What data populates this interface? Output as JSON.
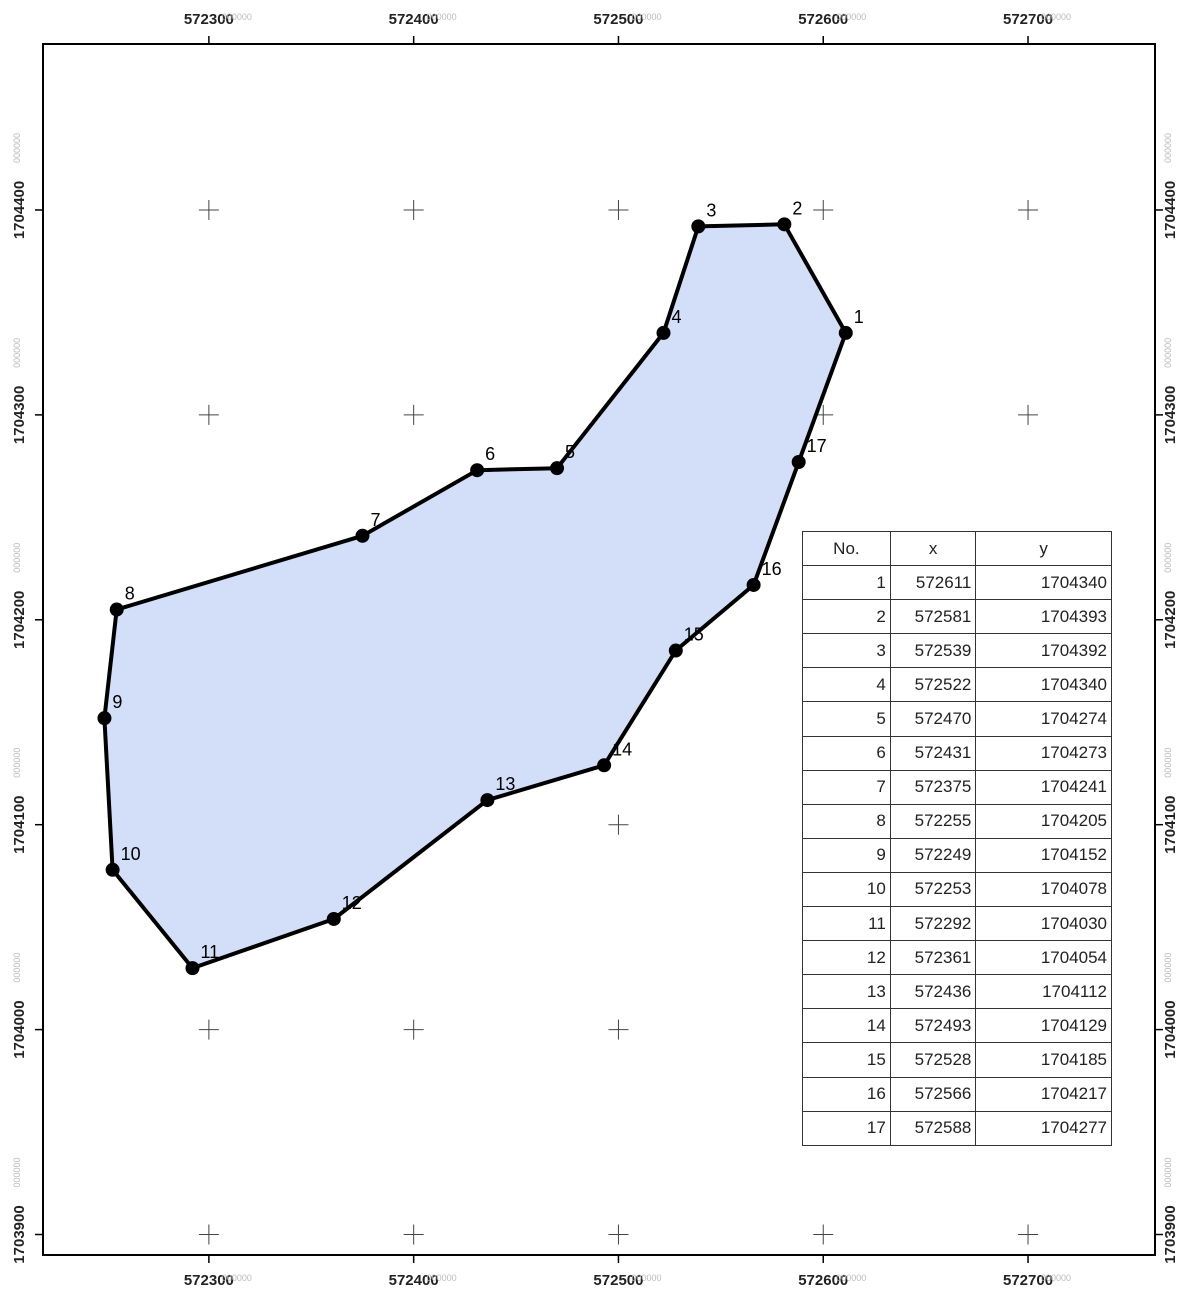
{
  "map": {
    "x_ticks": [
      {
        "value": 572300,
        "label": "572300",
        "suffix": "000000"
      },
      {
        "value": 572400,
        "label": "572400",
        "suffix": "000000"
      },
      {
        "value": 572500,
        "label": "572500",
        "suffix": "000000"
      },
      {
        "value": 572600,
        "label": "572600",
        "suffix": "000000"
      },
      {
        "value": 572700,
        "label": "572700",
        "suffix": "000000"
      }
    ],
    "y_ticks": [
      {
        "value": 1704400,
        "label": "1704400",
        "suffix": "000000"
      },
      {
        "value": 1704300,
        "label": "1704300",
        "suffix": "000000"
      },
      {
        "value": 1704200,
        "label": "1704200",
        "suffix": "000000"
      },
      {
        "value": 1704100,
        "label": "1704100",
        "suffix": "000000"
      },
      {
        "value": 1704000,
        "label": "1704000",
        "suffix": "000000"
      },
      {
        "value": 1703900,
        "label": "1703900",
        "suffix": "000000"
      }
    ],
    "x_range": [
      572219,
      572762
    ],
    "y_range": [
      1703890,
      1704481
    ],
    "polygon_fill": "#d3dff8",
    "polygon_stroke": "#000000",
    "vertices": [
      {
        "no": "1",
        "x": 572611,
        "y": 1704340
      },
      {
        "no": "2",
        "x": 572581,
        "y": 1704393
      },
      {
        "no": "3",
        "x": 572539,
        "y": 1704392
      },
      {
        "no": "4",
        "x": 572522,
        "y": 1704340
      },
      {
        "no": "5",
        "x": 572470,
        "y": 1704274
      },
      {
        "no": "6",
        "x": 572431,
        "y": 1704273
      },
      {
        "no": "7",
        "x": 572375,
        "y": 1704241
      },
      {
        "no": "8",
        "x": 572255,
        "y": 1704205
      },
      {
        "no": "9",
        "x": 572249,
        "y": 1704152
      },
      {
        "no": "10",
        "x": 572253,
        "y": 1704078
      },
      {
        "no": "11",
        "x": 572292,
        "y": 1704030
      },
      {
        "no": "12",
        "x": 572361,
        "y": 1704054
      },
      {
        "no": "13",
        "x": 572436,
        "y": 1704112
      },
      {
        "no": "14",
        "x": 572493,
        "y": 1704129
      },
      {
        "no": "15",
        "x": 572528,
        "y": 1704185
      },
      {
        "no": "16",
        "x": 572566,
        "y": 1704217
      },
      {
        "no": "17",
        "x": 572588,
        "y": 1704277
      }
    ]
  },
  "table": {
    "headers": [
      "No.",
      "x",
      "y"
    ],
    "rows": [
      [
        "1",
        "572611",
        "1704340"
      ],
      [
        "2",
        "572581",
        "1704393"
      ],
      [
        "3",
        "572539",
        "1704392"
      ],
      [
        "4",
        "572522",
        "1704340"
      ],
      [
        "5",
        "572470",
        "1704274"
      ],
      [
        "6",
        "572431",
        "1704273"
      ],
      [
        "7",
        "572375",
        "1704241"
      ],
      [
        "8",
        "572255",
        "1704205"
      ],
      [
        "9",
        "572249",
        "1704152"
      ],
      [
        "10",
        "572253",
        "1704078"
      ],
      [
        "11",
        "572292",
        "1704030"
      ],
      [
        "12",
        "572361",
        "1704054"
      ],
      [
        "13",
        "572436",
        "1704112"
      ],
      [
        "14",
        "572493",
        "1704129"
      ],
      [
        "15",
        "572528",
        "1704185"
      ],
      [
        "16",
        "572566",
        "1704217"
      ],
      [
        "17",
        "572588",
        "1704277"
      ]
    ]
  }
}
